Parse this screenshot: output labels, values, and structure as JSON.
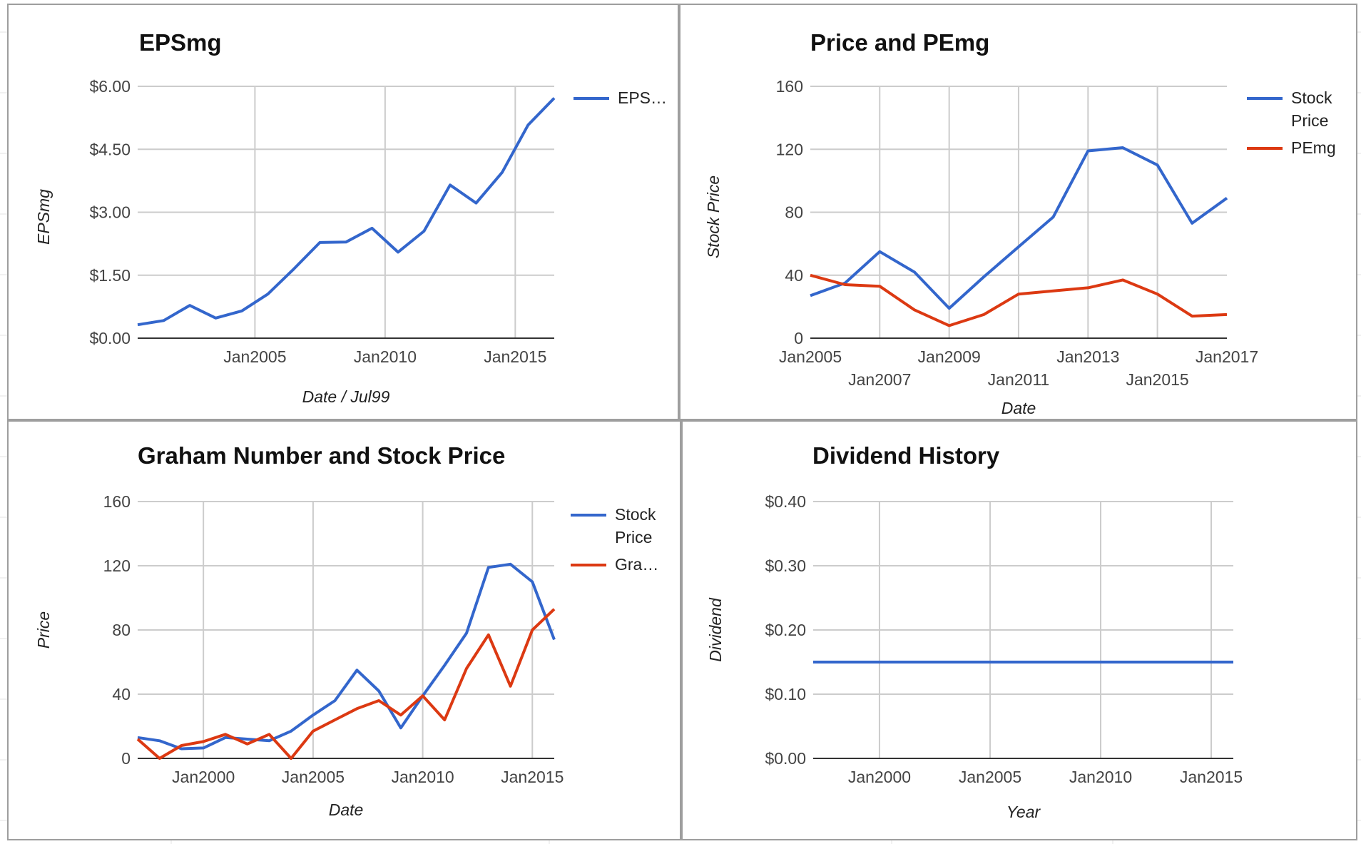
{
  "colors": {
    "blue": "#3366cc",
    "red": "#dc3912"
  },
  "chart_data": [
    {
      "type": "line",
      "title": "EPSmg",
      "xlabel": "Date / Jul99",
      "ylabel": "EPSmg",
      "x_axis": "date",
      "xlim": [
        "2000-07-01",
        "2016-07-01"
      ],
      "ylim": [
        0,
        6
      ],
      "yticks": [
        0,
        1.5,
        3,
        4.5,
        6
      ],
      "ytick_labels": [
        "$0.00",
        "$1.50",
        "$3.00",
        "$4.50",
        "$6.00"
      ],
      "xticks": [
        "2005-01-01",
        "2010-01-01",
        "2015-01-01"
      ],
      "xtick_labels": [
        "Jan2005",
        "Jan2010",
        "Jan2015"
      ],
      "legend_position": "right",
      "grid": true,
      "series": [
        {
          "name": "EPS…",
          "color": "#3366cc",
          "points": [
            [
              "2000-07-01",
              0.32
            ],
            [
              "2001-07-01",
              0.42
            ],
            [
              "2002-07-01",
              0.78
            ],
            [
              "2003-07-01",
              0.48
            ],
            [
              "2004-07-01",
              0.65
            ],
            [
              "2005-07-01",
              1.05
            ],
            [
              "2006-07-01",
              1.65
            ],
            [
              "2007-07-01",
              2.28
            ],
            [
              "2008-07-01",
              2.29
            ],
            [
              "2009-07-01",
              2.62
            ],
            [
              "2010-07-01",
              2.05
            ],
            [
              "2011-07-01",
              2.55
            ],
            [
              "2012-07-01",
              3.65
            ],
            [
              "2013-07-01",
              3.22
            ],
            [
              "2014-07-01",
              3.95
            ],
            [
              "2015-07-01",
              5.08
            ],
            [
              "2016-07-01",
              5.72
            ]
          ]
        }
      ]
    },
    {
      "type": "line",
      "title": "Price and PEmg",
      "xlabel": "Date",
      "ylabel": "Stock Price",
      "x_axis": "date",
      "xlim": [
        "2005-01-01",
        "2017-01-01"
      ],
      "ylim": [
        0,
        160
      ],
      "yticks": [
        0,
        40,
        80,
        120,
        160
      ],
      "ytick_labels": [
        "0",
        "40",
        "80",
        "120",
        "160"
      ],
      "xticks": [
        "2005-01-01",
        "2007-01-01",
        "2009-01-01",
        "2011-01-01",
        "2013-01-01",
        "2015-01-01",
        "2017-01-01"
      ],
      "xtick_labels": [
        "Jan2005",
        "Jan2007",
        "Jan2009",
        "Jan2011",
        "Jan2013",
        "Jan2015",
        "Jan2017"
      ],
      "legend_position": "right",
      "grid": true,
      "series": [
        {
          "name": "Stock Price",
          "color": "#3366cc",
          "points": [
            [
              "2005-01-01",
              27
            ],
            [
              "2006-01-01",
              35
            ],
            [
              "2007-01-01",
              55
            ],
            [
              "2008-01-01",
              42
            ],
            [
              "2009-01-01",
              19
            ],
            [
              "2010-01-01",
              39
            ],
            [
              "2011-01-01",
              58
            ],
            [
              "2012-01-01",
              77
            ],
            [
              "2013-01-01",
              119
            ],
            [
              "2014-01-01",
              121
            ],
            [
              "2015-01-01",
              110
            ],
            [
              "2016-01-01",
              73
            ],
            [
              "2017-01-01",
              89
            ]
          ]
        },
        {
          "name": "PEmg",
          "color": "#dc3912",
          "points": [
            [
              "2005-01-01",
              40
            ],
            [
              "2006-01-01",
              34
            ],
            [
              "2007-01-01",
              33
            ],
            [
              "2008-01-01",
              18
            ],
            [
              "2009-01-01",
              8
            ],
            [
              "2010-01-01",
              15
            ],
            [
              "2011-01-01",
              28
            ],
            [
              "2012-01-01",
              30
            ],
            [
              "2013-01-01",
              32
            ],
            [
              "2014-01-01",
              37
            ],
            [
              "2015-01-01",
              28
            ],
            [
              "2016-01-01",
              14
            ],
            [
              "2017-01-01",
              15
            ]
          ]
        }
      ]
    },
    {
      "type": "line",
      "title": "Graham Number and Stock Price",
      "xlabel": "Date",
      "ylabel": "Price",
      "x_axis": "date",
      "xlim": [
        "1997-01-01",
        "2016-01-01"
      ],
      "ylim": [
        0,
        160
      ],
      "yticks": [
        0,
        40,
        80,
        120,
        160
      ],
      "ytick_labels": [
        "0",
        "40",
        "80",
        "120",
        "160"
      ],
      "xticks": [
        "2000-01-01",
        "2005-01-01",
        "2010-01-01",
        "2015-01-01"
      ],
      "xtick_labels": [
        "Jan2000",
        "Jan2005",
        "Jan2010",
        "Jan2015"
      ],
      "legend_position": "right",
      "grid": true,
      "series": [
        {
          "name": "Stock Price",
          "color": "#3366cc",
          "points": [
            [
              "1997-01-01",
              13
            ],
            [
              "1998-01-01",
              11
            ],
            [
              "1999-01-01",
              6
            ],
            [
              "2000-01-01",
              6.5
            ],
            [
              "2001-01-01",
              13
            ],
            [
              "2002-01-01",
              12
            ],
            [
              "2003-01-01",
              11
            ],
            [
              "2004-01-01",
              17
            ],
            [
              "2005-01-01",
              27
            ],
            [
              "2006-01-01",
              36
            ],
            [
              "2007-01-01",
              55
            ],
            [
              "2008-01-01",
              42
            ],
            [
              "2009-01-01",
              19
            ],
            [
              "2010-01-01",
              39
            ],
            [
              "2011-01-01",
              58
            ],
            [
              "2012-01-01",
              78
            ],
            [
              "2013-01-01",
              119
            ],
            [
              "2014-01-01",
              121
            ],
            [
              "2015-01-01",
              110
            ],
            [
              "2016-01-01",
              74
            ]
          ]
        },
        {
          "name": "Gra…",
          "color": "#dc3912",
          "points": [
            [
              "1997-01-01",
              12
            ],
            [
              "1998-01-01",
              0
            ],
            [
              "1999-01-01",
              8
            ],
            [
              "2000-01-01",
              10.5
            ],
            [
              "2001-01-01",
              15
            ],
            [
              "2002-01-01",
              9
            ],
            [
              "2003-01-01",
              15
            ],
            [
              "2004-01-01",
              0
            ],
            [
              "2005-01-01",
              17
            ],
            [
              "2006-01-01",
              24
            ],
            [
              "2007-01-01",
              31
            ],
            [
              "2008-01-01",
              36
            ],
            [
              "2009-01-01",
              27
            ],
            [
              "2010-01-01",
              39
            ],
            [
              "2011-01-01",
              24
            ],
            [
              "2012-01-01",
              56
            ],
            [
              "2013-01-01",
              77
            ],
            [
              "2014-01-01",
              45
            ],
            [
              "2015-01-01",
              80
            ],
            [
              "2016-01-01",
              93
            ]
          ]
        }
      ]
    },
    {
      "type": "line",
      "title": "Dividend History",
      "xlabel": "Year",
      "ylabel": "Dividend",
      "x_axis": "date",
      "xlim": [
        "1997-01-01",
        "2016-01-01"
      ],
      "ylim": [
        0,
        0.4
      ],
      "yticks": [
        0,
        0.1,
        0.2,
        0.3,
        0.4
      ],
      "ytick_labels": [
        "$0.00",
        "$0.10",
        "$0.20",
        "$0.30",
        "$0.40"
      ],
      "xticks": [
        "2000-01-01",
        "2005-01-01",
        "2010-01-01",
        "2015-01-01"
      ],
      "xtick_labels": [
        "Jan2000",
        "Jan2005",
        "Jan2010",
        "Jan2015"
      ],
      "legend_position": "none",
      "grid": true,
      "series": [
        {
          "name": "",
          "color": "#3366cc",
          "points": [
            [
              "1997-01-01",
              0.15
            ],
            [
              "2016-01-01",
              0.15
            ]
          ]
        }
      ]
    }
  ]
}
